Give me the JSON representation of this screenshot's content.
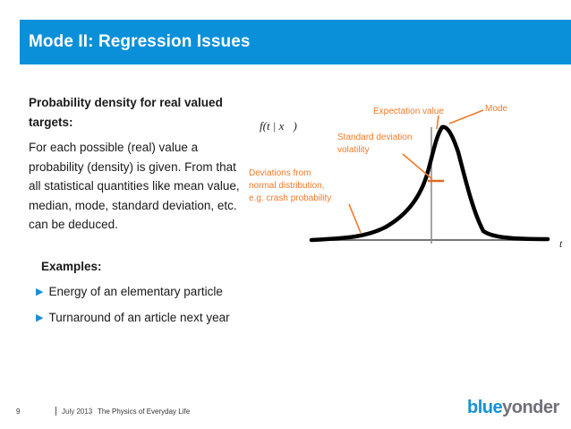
{
  "slide": {
    "title": "Mode II: Regression Issues",
    "heading": "Probability density for real valued targets:",
    "paragraph": "For each possible (real) value a probability (density) is given. From that all statistical quantities like mean value, median, mode, standard deviation, etc. can be deduced.",
    "examples_title": "Examples:",
    "bullets": [
      "Energy of an elementary particle",
      "Turnaround of an article next year"
    ]
  },
  "diagram": {
    "y_axis_label": "f(t | x⃗)",
    "x_axis_label": "t",
    "annotations": {
      "expectation_value": "Expectation value",
      "mode": "Mode",
      "std_line1": "Standard deviation",
      "std_line2": "volatility",
      "dev_line1": "Deviations from",
      "dev_line2": "normal distribution,",
      "dev_line3": "e.g. crash probability"
    },
    "accent_color": "#f07a2a"
  },
  "footer": {
    "page_number": "9",
    "date": "July 2013",
    "title": "The Physics of Everyday Life"
  },
  "logo": {
    "part1": "blue",
    "part2": "yonder"
  }
}
